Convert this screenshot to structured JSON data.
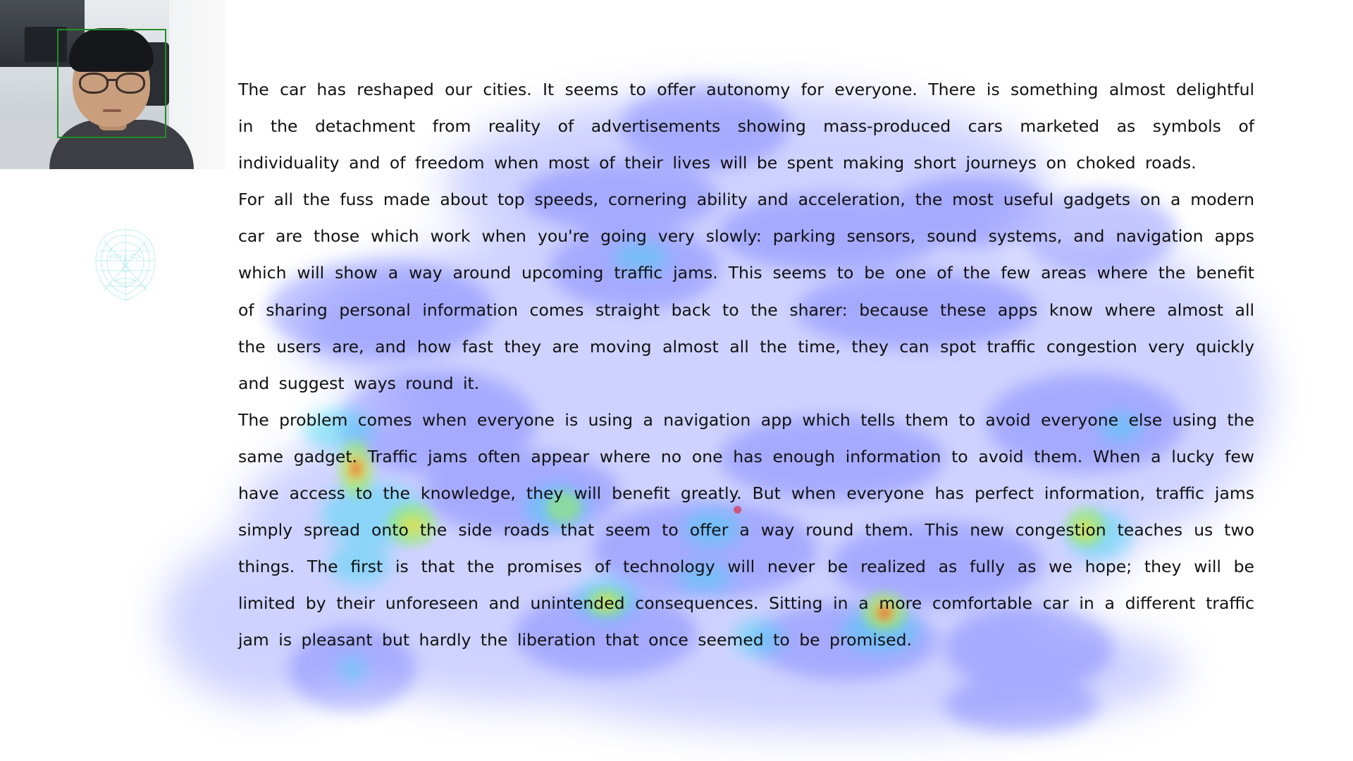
{
  "passage": {
    "paragraphs": [
      "The car has reshaped our cities. It seems to offer autonomy for everyone. There is something almost delightful in the detachment from reality of advertisements showing mass-produced cars marketed as symbols of individuality and of freedom when most of their lives will be spent making short journeys on choked roads.",
      "For all the fuss made about top speeds, cornering ability and acceleration, the most useful gadgets on a modern car are those which work when you're going very slowly: parking sensors, sound systems, and navigation apps which will show a way around upcoming traffic jams. This seems to be one of the few areas where the benefit of sharing personal information comes straight back to the sharer: because these apps know where almost all the users are, and how fast they are moving almost all the time, they can spot traffic congestion very quickly and suggest ways round it.",
      "The problem comes when everyone is using a navigation app which tells them to avoid everyone else using the same gadget. Traffic jams often appear where no one has enough information to avoid them. When a lucky few have access to the knowledge, they will benefit greatly. But when everyone has perfect information, traffic jams simply spread onto the side roads that seem to offer a way round them. This new congestion teaches us two things. The first is that the promises of technology will never be realized as fully as we hope; they will be limited by their unforeseen and unintended consequences. Sitting in a more comfortable car in a different traffic jam is pleasant but hardly the liberation that once seemed to be promised."
    ]
  },
  "colors": {
    "face_box": "#1f8f2a",
    "face_mesh": "#2bc7c7",
    "gaze_dot": "#d2486a",
    "text": "#111111"
  },
  "icons": {
    "webcam": "webcam-preview",
    "face_mesh": "face-mesh-icon",
    "gaze": "gaze-point"
  }
}
